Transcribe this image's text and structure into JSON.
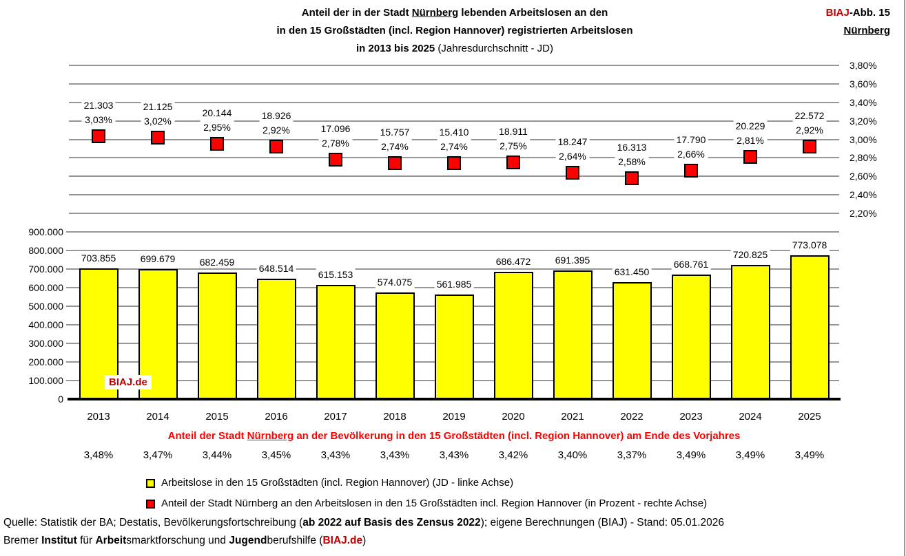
{
  "header": {
    "title_line1": [
      {
        "t": "Anteil der in der Stadt ",
        "b": true
      },
      {
        "t": "Nürnberg",
        "b": true,
        "u": true
      },
      {
        "t": " lebenden Arbeitslosen an den",
        "b": true
      }
    ],
    "title_line2": [
      {
        "t": "in den 15 Großstädten (incl. Region Hannover) registrierten Arbeitslosen",
        "b": true
      }
    ],
    "title_line3": [
      {
        "t": "in 2013 bis 2025",
        "b": true
      },
      {
        "t": " (Jahresdurchschnitt - JD)",
        "b": false
      }
    ],
    "corner_line1": [
      {
        "t": "BIAJ",
        "b": true,
        "c": "#C00000"
      },
      {
        "t": "-Abb. 15",
        "b": true
      }
    ],
    "corner_line2": [
      {
        "t": "Nürnberg",
        "b": true,
        "u": true
      }
    ]
  },
  "watermark": "BIAJ.de",
  "chart_data": {
    "type": "combo_bar_point",
    "title": "Anteil der in der Stadt Nürnberg lebenden Arbeitslosen an den in den 15 Großstädten (incl. Region Hannover) registrierten Arbeitslosen in 2013 bis 2025 (Jahresdurchschnitt - JD)",
    "categories": [
      "2013",
      "2014",
      "2015",
      "2016",
      "2017",
      "2018",
      "2019",
      "2020",
      "2021",
      "2022",
      "2023",
      "2024",
      "2025"
    ],
    "bar_series": {
      "name": "Arbeitslose in den 15 Großstädten (incl. Region Hannover) (JD - linke Achse)",
      "axis": "left",
      "color": "#FFFF00",
      "values": [
        703855,
        699679,
        682459,
        648514,
        615153,
        574075,
        561985,
        686472,
        691395,
        631450,
        668761,
        720825,
        773078
      ],
      "labels": [
        "703.855",
        "699.679",
        "682.459",
        "648.514",
        "615.153",
        "574.075",
        "561.985",
        "686.472",
        "691.395",
        "631.450",
        "668.761",
        "720.825",
        "773.078"
      ]
    },
    "point_series": {
      "name": "Anteil der Stadt Nürnberg an den Arbeitslosen in den 15 Großstädten incl. Region Hannover (in Prozent - rechte Achse)",
      "axis": "right",
      "color": "#FF0000",
      "values_percent": [
        3.03,
        3.02,
        2.95,
        2.92,
        2.78,
        2.74,
        2.74,
        2.75,
        2.64,
        2.58,
        2.66,
        2.81,
        2.92
      ],
      "labels_absolute": [
        "21.303",
        "21.125",
        "20.144",
        "18.926",
        "17.096",
        "15.757",
        "15.410",
        "18.911",
        "18.247",
        "16.313",
        "17.790",
        "20.229",
        "22.572"
      ],
      "labels_percent": [
        "3,03%",
        "3,02%",
        "2,95%",
        "2,92%",
        "2,78%",
        "2,74%",
        "2,74%",
        "2,75%",
        "2,64%",
        "2,58%",
        "2,66%",
        "2,81%",
        "2,92%"
      ]
    },
    "left_axis": {
      "min": 0,
      "max": 900000,
      "step": 100000,
      "tick_labels": [
        "900.000",
        "800.000",
        "700.000",
        "600.000",
        "500.000",
        "400.000",
        "300.000",
        "200.000",
        "100.000",
        "0"
      ]
    },
    "right_axis": {
      "min": 2.2,
      "max": 3.8,
      "step": 0.2,
      "tick_labels": [
        "3,80%",
        "3,60%",
        "3,40%",
        "3,20%",
        "3,00%",
        "2,80%",
        "2,60%",
        "2,40%",
        "2,20%"
      ]
    },
    "grid": true,
    "legend_position": "bottom-left",
    "population_row": {
      "title_segments": [
        {
          "t": "Anteil der Stadt ",
          "b": true,
          "c": "#FF0000"
        },
        {
          "t": "Nürnberg",
          "b": true,
          "c": "#FF0000",
          "u": true
        },
        {
          "t": " an der Bevölkerung in den 15 Großstädten (incl. Region Hannover) am Ende des Vorjahres",
          "b": true,
          "c": "#FF0000"
        }
      ],
      "values": [
        "3,48%",
        "3,47%",
        "3,44%",
        "3,45%",
        "3,43%",
        "3,43%",
        "3,43%",
        "3,42%",
        "3,40%",
        "3,37%",
        "3,49%",
        "3,49%",
        "3,49%"
      ]
    }
  },
  "legend": {
    "items": [
      {
        "swatch_color": "#FFFF00",
        "label": "Arbeitslose in den 15 Großstädten (incl. Region Hannover) (JD - linke Achse)"
      },
      {
        "swatch_color": "#FF0000",
        "label": "Anteil der Stadt Nürnberg an den Arbeitslosen in den 15 Großstädten incl. Region Hannover (in Prozent - rechte Achse)"
      }
    ]
  },
  "footer": {
    "line1": [
      {
        "t": "Quelle: Statistik der BA; Destatis, Bevölkerungsfortschreibung ("
      },
      {
        "t": "ab 2022 auf Basis des Zensus 2022",
        "b": true
      },
      {
        "t": "); eigene Berechnungen (BIAJ) - Stand: 05.01.2026"
      }
    ],
    "line2": [
      {
        "t": "Bremer "
      },
      {
        "t": "Institut",
        "b": true
      },
      {
        "t": " für "
      },
      {
        "t": "Arbeit",
        "b": true
      },
      {
        "t": "smarktforschung und "
      },
      {
        "t": "Jugend",
        "b": true
      },
      {
        "t": "berufshilfe ("
      },
      {
        "t": "BIAJ.de",
        "b": true,
        "c": "#C00000"
      },
      {
        "t": ")"
      }
    ]
  },
  "colors": {
    "bar": "#FFFF00",
    "marker": "#FF0000",
    "grid": "#969696",
    "accent_red": "#FF0000",
    "dark_red": "#C00000"
  }
}
